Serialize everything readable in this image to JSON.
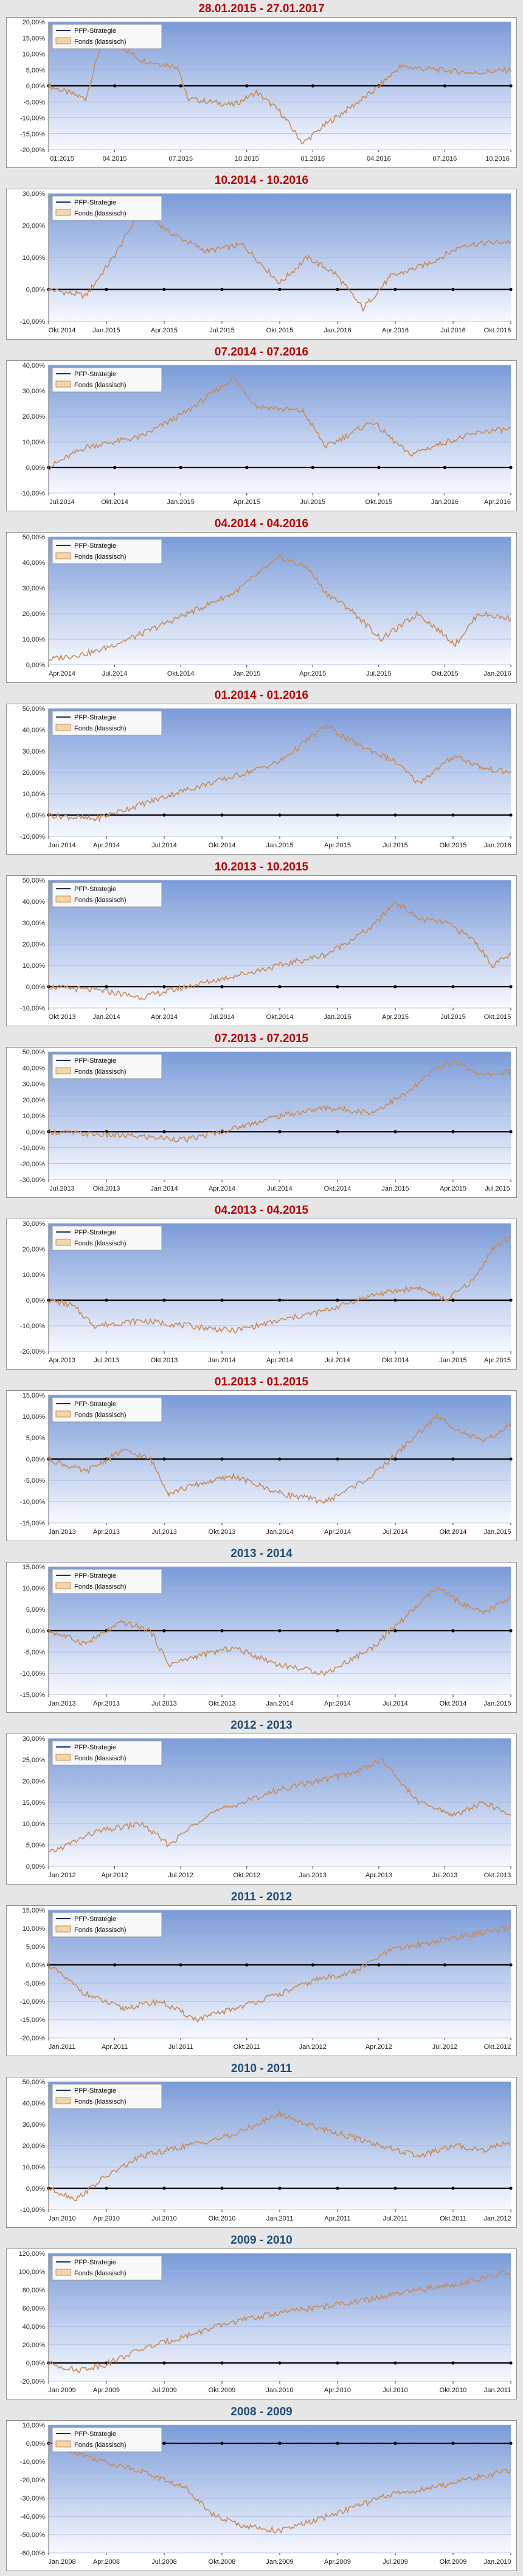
{
  "legend": {
    "series_a": "PFP-Strategie",
    "series_b": "Fonds (klassisch)"
  },
  "colors": {
    "red_title": "#b40000",
    "blue_title": "#1f4e79",
    "series_a": "#1f2f66",
    "series_b": "#c98a55",
    "plot_top": "#7a9bd8",
    "plot_bottom": "#f7f9ff",
    "frame": "#8c8c8c"
  },
  "chart_data": [
    {
      "type": "line",
      "title": "28.01.2015 - 27.01.2017",
      "title_color": "red",
      "ylim": [
        -20,
        20
      ],
      "yticks": [
        "20,00%",
        "15,00%",
        "10,00%",
        "5,00%",
        "0,00%",
        "-5,00%",
        "-10,00%",
        "-15,00%",
        "-20,00%"
      ],
      "xticks": [
        "01.2015",
        "04.2015",
        "07.2015",
        "10.2015",
        "01.2016",
        "04.2016",
        "07.2016",
        "10.2016"
      ],
      "x": [
        0,
        0.08,
        0.12,
        0.2,
        0.28,
        0.3,
        0.4,
        0.45,
        0.5,
        0.55,
        0.6,
        0.7,
        0.76,
        0.85,
        0.92,
        1
      ],
      "values": [
        0,
        -4,
        16,
        8,
        6,
        -4,
        -6,
        -2,
        -8,
        -18,
        -12,
        -2,
        6,
        5,
        4,
        5
      ],
      "grid": true,
      "legend": "top-left"
    },
    {
      "type": "line",
      "title": "10.2014 - 10.2016",
      "title_color": "red",
      "ylim": [
        -10,
        30
      ],
      "yticks": [
        "30,00%",
        "20,00%",
        "10,00%",
        "0,00%",
        "-10,00%"
      ],
      "xticks": [
        "Okt.2014",
        "Jan.2015",
        "Apr.2015",
        "Jul.2015",
        "Okt.2015",
        "Jan.2016",
        "Apr.2016",
        "Jul.2016",
        "Okt.2016"
      ],
      "x": [
        0,
        0.08,
        0.14,
        0.2,
        0.26,
        0.34,
        0.42,
        0.5,
        0.56,
        0.62,
        0.68,
        0.74,
        0.82,
        0.9,
        1
      ],
      "values": [
        0,
        -2,
        10,
        25,
        18,
        12,
        14,
        2,
        10,
        5,
        -6,
        4,
        8,
        14,
        15
      ],
      "grid": true,
      "legend": "top-left"
    },
    {
      "type": "line",
      "title": "07.2014 - 07.2016",
      "title_color": "red",
      "ylim": [
        -10,
        40
      ],
      "yticks": [
        "40,00%",
        "30,00%",
        "20,00%",
        "10,00%",
        "0,00%",
        "-10,00%"
      ],
      "xticks": [
        "Jul.2014",
        "Okt.2014",
        "Jan.2015",
        "Apr.2015",
        "Jul.2015",
        "Okt.2015",
        "Jan.2016",
        "Apr.2016"
      ],
      "x": [
        0,
        0.08,
        0.2,
        0.3,
        0.4,
        0.45,
        0.55,
        0.6,
        0.7,
        0.78,
        0.86,
        0.94,
        1
      ],
      "values": [
        0,
        8,
        12,
        22,
        35,
        24,
        22,
        8,
        18,
        5,
        10,
        14,
        15
      ],
      "grid": true,
      "legend": "top-left"
    },
    {
      "type": "line",
      "title": "04.2014 - 04.2016",
      "title_color": "red",
      "ylim": [
        0,
        50
      ],
      "yticks": [
        "50,00%",
        "40,00%",
        "30,00%",
        "20,00%",
        "10,00%",
        "0,00%"
      ],
      "xticks": [
        "Apr.2014",
        "Jul.2014",
        "Okt.2014",
        "Jan.2015",
        "Apr.2015",
        "Jul.2015",
        "Okt.2015",
        "Jan.2016"
      ],
      "x": [
        0,
        0.1,
        0.2,
        0.3,
        0.4,
        0.5,
        0.56,
        0.6,
        0.65,
        0.72,
        0.8,
        0.88,
        0.93,
        1
      ],
      "values": [
        2,
        5,
        12,
        20,
        28,
        42,
        38,
        28,
        22,
        10,
        20,
        8,
        20,
        18
      ],
      "grid": true,
      "legend": "top-left"
    },
    {
      "type": "line",
      "title": "01.2014 - 01.2016",
      "title_color": "red",
      "ylim": [
        -10,
        50
      ],
      "yticks": [
        "50,00%",
        "40,00%",
        "30,00%",
        "20,00%",
        "10,00%",
        "0,00%",
        "-10,00%"
      ],
      "xticks": [
        "Jan.2014",
        "Apr.2014",
        "Jul.2014",
        "Okt.2014",
        "Jan.2015",
        "Apr.2015",
        "Jul.2015",
        "Okt.2015",
        "Jan.2016"
      ],
      "x": [
        0,
        0.1,
        0.2,
        0.3,
        0.4,
        0.5,
        0.6,
        0.65,
        0.7,
        0.75,
        0.8,
        0.88,
        0.94,
        1
      ],
      "values": [
        0,
        -2,
        5,
        12,
        18,
        25,
        42,
        35,
        30,
        25,
        15,
        28,
        22,
        20
      ],
      "grid": true,
      "legend": "top-left"
    },
    {
      "type": "line",
      "title": "10.2013 - 10.2015",
      "title_color": "red",
      "ylim": [
        -10,
        50
      ],
      "yticks": [
        "50,00%",
        "40,00%",
        "30,00%",
        "20,00%",
        "10,00%",
        "0,00%",
        "-10,00%"
      ],
      "xticks": [
        "Okt.2013",
        "Jan.2014",
        "Apr.2014",
        "Jul.2014",
        "Okt.2014",
        "Jan.2015",
        "Apr.2015",
        "Jul.2015",
        "Okt.2015"
      ],
      "x": [
        0,
        0.12,
        0.2,
        0.3,
        0.4,
        0.5,
        0.6,
        0.7,
        0.75,
        0.8,
        0.86,
        0.92,
        0.96,
        1
      ],
      "values": [
        0,
        -2,
        -5,
        0,
        5,
        10,
        15,
        28,
        40,
        32,
        30,
        22,
        10,
        15
      ],
      "grid": true,
      "legend": "top-left"
    },
    {
      "type": "line",
      "title": "07.2013 - 07.2015",
      "title_color": "red",
      "ylim": [
        -30,
        50
      ],
      "yticks": [
        "50,00%",
        "40,00%",
        "30,00%",
        "20,00%",
        "10,00%",
        "0,00%",
        "-10,00%",
        "-20,00%",
        "-30,00%"
      ],
      "xticks": [
        "Jul.2013",
        "Okt.2013",
        "Jan.2014",
        "Apr.2014",
        "Jul.2014",
        "Okt.2014",
        "Jan.2015",
        "Apr.2015",
        "Jul.2015"
      ],
      "x": [
        0,
        0.12,
        0.2,
        0.3,
        0.4,
        0.5,
        0.6,
        0.7,
        0.78,
        0.84,
        0.88,
        0.94,
        1
      ],
      "values": [
        0,
        -2,
        -3,
        -5,
        2,
        10,
        15,
        12,
        25,
        40,
        44,
        35,
        38
      ],
      "grid": true,
      "legend": "top-left"
    },
    {
      "type": "line",
      "title": "04.2013 - 04.2015",
      "title_color": "red",
      "ylim": [
        -20,
        30
      ],
      "yticks": [
        "30,00%",
        "20,00%",
        "10,00%",
        "0,00%",
        "-10,00%",
        "-20,00%"
      ],
      "xticks": [
        "Apr.2013",
        "Jul.2013",
        "Okt.2013",
        "Jan.2014",
        "Apr.2014",
        "Jul.2014",
        "Okt.2014",
        "Jan.2015",
        "Apr.2015"
      ],
      "x": [
        0,
        0.05,
        0.1,
        0.2,
        0.3,
        0.4,
        0.5,
        0.6,
        0.7,
        0.8,
        0.86,
        0.92,
        0.96,
        1
      ],
      "values": [
        0,
        -2,
        -10,
        -8,
        -10,
        -12,
        -8,
        -4,
        2,
        5,
        0,
        8,
        20,
        25
      ],
      "grid": true,
      "legend": "top-left"
    },
    {
      "type": "line",
      "title": "01.2013 - 01.2015",
      "title_color": "red",
      "ylim": [
        -15,
        15
      ],
      "yticks": [
        "15,00%",
        "10,00%",
        "5,00%",
        "0,00%",
        "-5,00%",
        "-10,00%",
        "-15,00%"
      ],
      "xticks": [
        "Jan.2013",
        "Apr.2013",
        "Jul.2013",
        "Okt.2013",
        "Jan.2014",
        "Apr.2014",
        "Jul.2014",
        "Okt.2014",
        "Jan.2015"
      ],
      "x": [
        0,
        0.08,
        0.16,
        0.22,
        0.26,
        0.32,
        0.4,
        0.5,
        0.6,
        0.7,
        0.76,
        0.84,
        0.9,
        0.94,
        1
      ],
      "values": [
        0,
        -3,
        2,
        0,
        -8,
        -6,
        -4,
        -8,
        -10,
        -4,
        2,
        10,
        6,
        4,
        8
      ],
      "grid": true,
      "legend": "top-left"
    },
    {
      "type": "line",
      "title": "2013 - 2014",
      "title_color": "blue",
      "ylim": [
        -15,
        15
      ],
      "yticks": [
        "15,00%",
        "10,00%",
        "5,00%",
        "0,00%",
        "-5,00%",
        "-10,00%",
        "-15,00%"
      ],
      "xticks": [
        "Jan.2013",
        "Apr.2013",
        "Jul.2013",
        "Okt.2013",
        "Jan.2014",
        "Apr.2014",
        "Jul.2014",
        "Okt.2014",
        "Jan.2015"
      ],
      "x": [
        0,
        0.08,
        0.16,
        0.22,
        0.26,
        0.32,
        0.4,
        0.5,
        0.6,
        0.7,
        0.76,
        0.84,
        0.9,
        0.94,
        1
      ],
      "values": [
        0,
        -3,
        2,
        0,
        -8,
        -6,
        -4,
        -8,
        -10,
        -4,
        2,
        10,
        6,
        4,
        8
      ],
      "grid": true,
      "legend": "top-left"
    },
    {
      "type": "line",
      "title": "2012 - 2013",
      "title_color": "blue",
      "ylim": [
        0,
        30
      ],
      "yticks": [
        "30,00%",
        "25,00%",
        "20,00%",
        "15,00%",
        "10,00%",
        "5,00%",
        "0,00%"
      ],
      "xticks": [
        "Jan.2012",
        "Apr.2012",
        "Jul.2012",
        "Okt.2012",
        "Jan.2013",
        "Apr.2013",
        "Jul.2013",
        "Okt.2013"
      ],
      "x": [
        0,
        0.1,
        0.2,
        0.26,
        0.34,
        0.42,
        0.5,
        0.58,
        0.66,
        0.72,
        0.8,
        0.88,
        0.94,
        1
      ],
      "values": [
        3,
        8,
        10,
        5,
        12,
        15,
        18,
        20,
        22,
        25,
        15,
        12,
        15,
        12
      ],
      "grid": true,
      "legend": "top-left"
    },
    {
      "type": "line",
      "title": "2011 - 2012",
      "title_color": "blue",
      "ylim": [
        -20,
        15
      ],
      "yticks": [
        "15,00%",
        "10,00%",
        "5,00%",
        "0,00%",
        "-5,00%",
        "-10,00%",
        "-15,00%",
        "-20,00%"
      ],
      "xticks": [
        "Jan.2011",
        "Apr.2011",
        "Jul.2011",
        "Okt.2011",
        "Jan.2012",
        "Apr.2012",
        "Jul.2012",
        "Okt.2012"
      ],
      "x": [
        0,
        0.08,
        0.16,
        0.24,
        0.32,
        0.4,
        0.5,
        0.58,
        0.66,
        0.74,
        0.82,
        0.9,
        1
      ],
      "values": [
        0,
        -8,
        -12,
        -10,
        -15,
        -12,
        -8,
        -4,
        -2,
        4,
        6,
        8,
        10
      ],
      "grid": true,
      "legend": "top-left"
    },
    {
      "type": "line",
      "title": "2010 - 2011",
      "title_color": "blue",
      "ylim": [
        -10,
        50
      ],
      "yticks": [
        "50,00%",
        "40,00%",
        "30,00%",
        "20,00%",
        "10,00%",
        "0,00%",
        "-10,00%"
      ],
      "xticks": [
        "Jan.2010",
        "Apr.2010",
        "Jul.2010",
        "Okt.2010",
        "Jan.2011",
        "Apr.2011",
        "Jul.2011",
        "Okt.2011",
        "Jan.2012"
      ],
      "x": [
        0,
        0.06,
        0.12,
        0.2,
        0.3,
        0.4,
        0.5,
        0.56,
        0.64,
        0.72,
        0.8,
        0.88,
        0.94,
        1
      ],
      "values": [
        0,
        -5,
        5,
        15,
        20,
        25,
        35,
        30,
        25,
        20,
        15,
        20,
        18,
        22
      ],
      "grid": true,
      "legend": "top-left"
    },
    {
      "type": "line",
      "title": "2009 - 2010",
      "title_color": "blue",
      "ylim": [
        -20,
        120
      ],
      "yticks": [
        "120,00%",
        "100,00%",
        "80,00%",
        "60,00%",
        "40,00%",
        "20,00%",
        "0,00%",
        "-20,00%"
      ],
      "xticks": [
        "Jan.2009",
        "Apr.2009",
        "Jul.2009",
        "Okt.2009",
        "Jan.2010",
        "Apr.2010",
        "Jul.2010",
        "Okt.2010",
        "Jan.2011"
      ],
      "x": [
        0,
        0.06,
        0.12,
        0.2,
        0.3,
        0.4,
        0.5,
        0.6,
        0.7,
        0.8,
        0.9,
        0.96,
        1
      ],
      "values": [
        0,
        -8,
        -2,
        15,
        30,
        45,
        55,
        62,
        70,
        80,
        88,
        95,
        100
      ],
      "grid": true,
      "legend": "top-left"
    },
    {
      "type": "line",
      "title": "2008 - 2009",
      "title_color": "blue",
      "ylim": [
        -60,
        10
      ],
      "yticks": [
        "10,00%",
        "0,00%",
        "-10,00%",
        "-20,00%",
        "-30,00%",
        "-40,00%",
        "-50,00%",
        "-60,00%"
      ],
      "xticks": [
        "Jan.2008",
        "Apr.2008",
        "Jul.2008",
        "Okt.2008",
        "Jan.2009",
        "Apr.2009",
        "Jul.2009",
        "Okt.2009",
        "Jan.2010"
      ],
      "x": [
        0,
        0.06,
        0.12,
        0.2,
        0.3,
        0.36,
        0.42,
        0.5,
        0.58,
        0.66,
        0.74,
        0.82,
        0.9,
        1
      ],
      "values": [
        0,
        -5,
        -10,
        -15,
        -25,
        -40,
        -45,
        -48,
        -42,
        -35,
        -28,
        -25,
        -20,
        -15
      ],
      "grid": true,
      "legend": "top-left"
    }
  ]
}
